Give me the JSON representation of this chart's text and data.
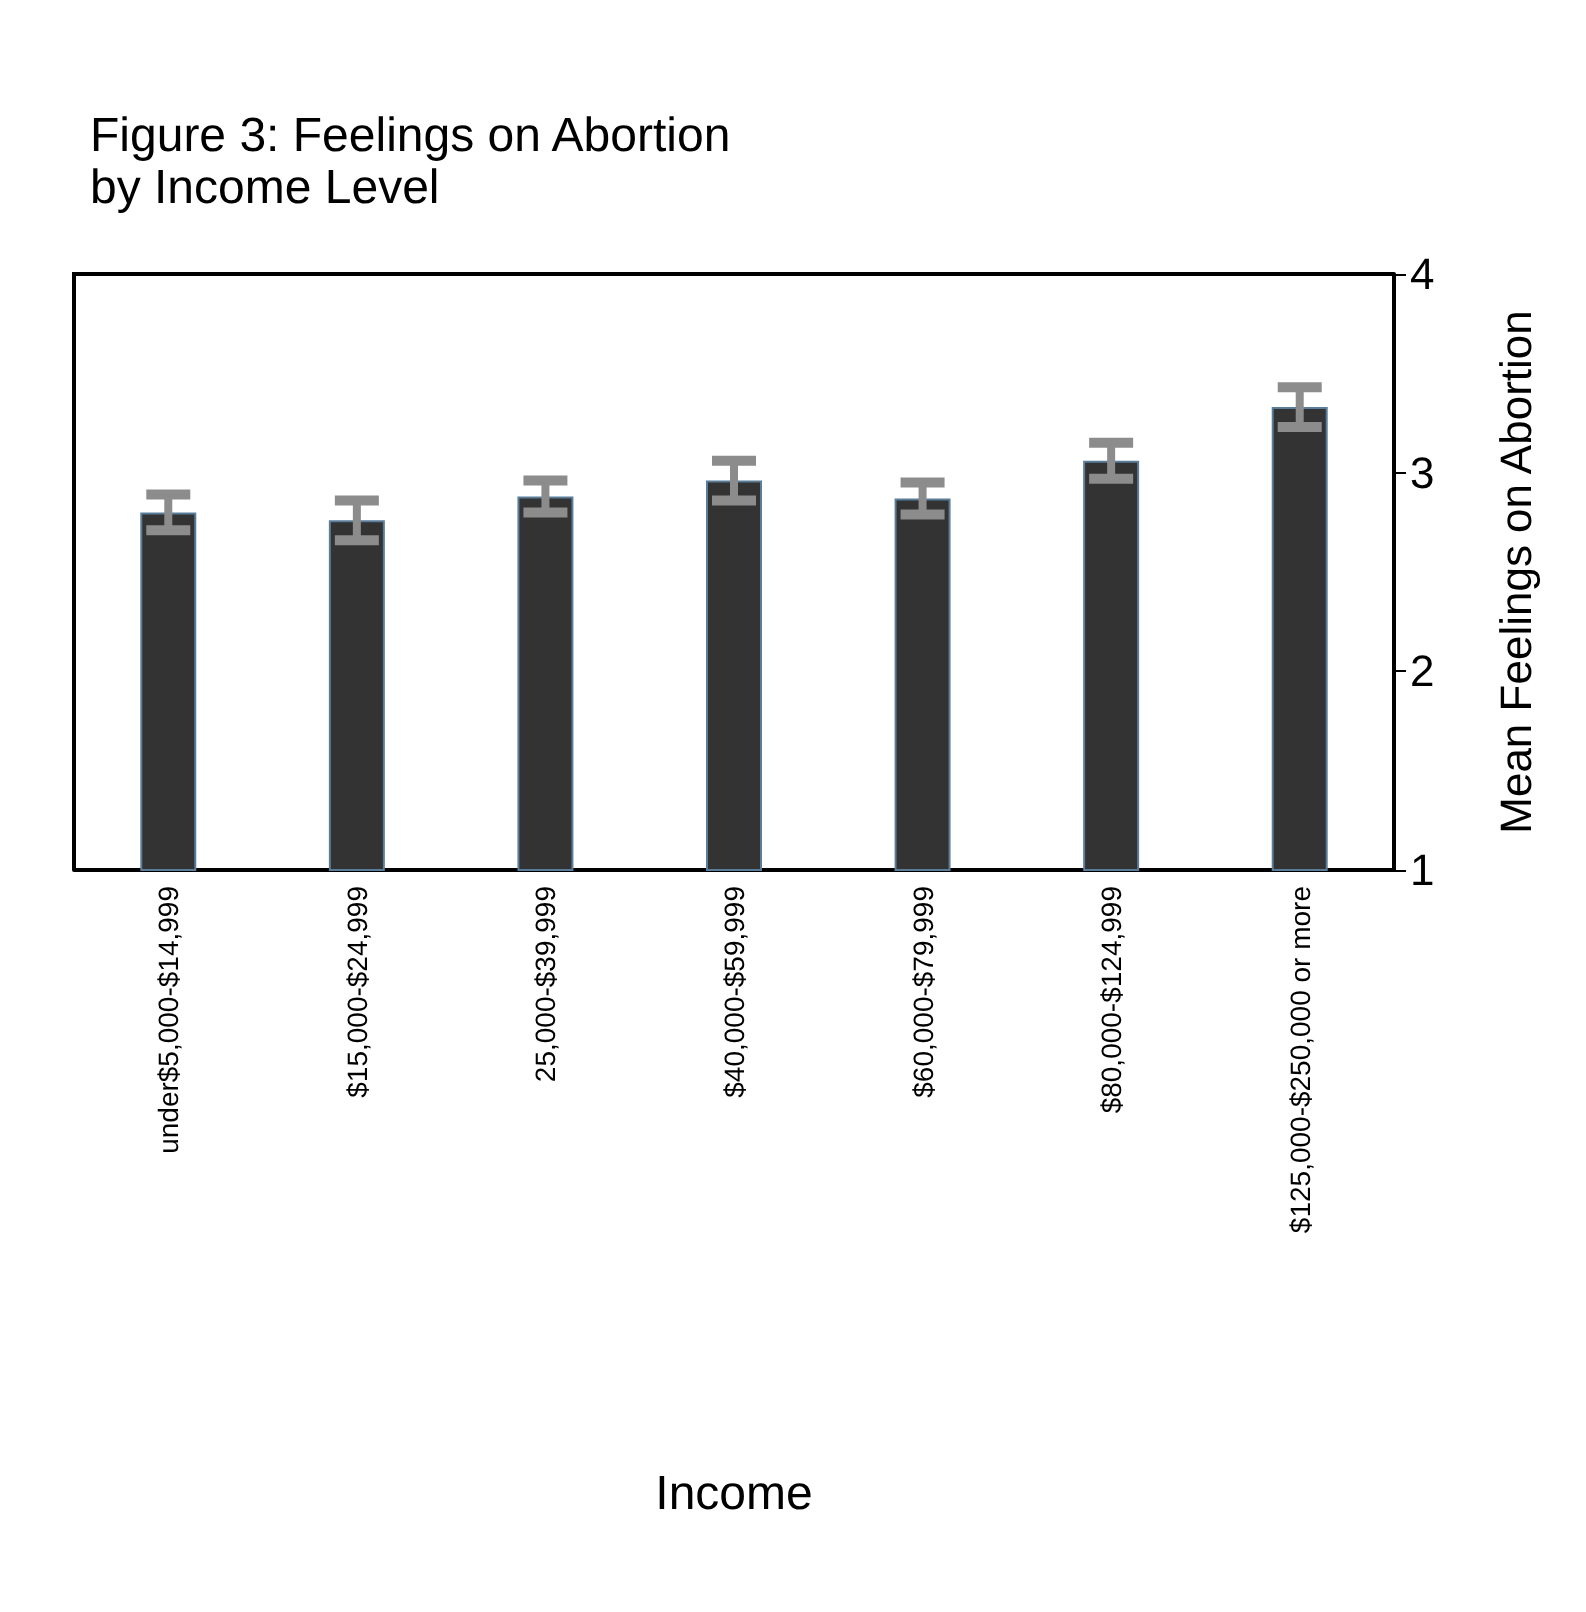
{
  "chart_data": {
    "type": "bar",
    "title": "Figure 3: Feelings on Abortion\nby Income Level",
    "xlabel": "Income",
    "ylabel": "Mean Feelings on Abortion",
    "categories": [
      "under$5,000-$14,999",
      "$15,000-$24,999",
      "25,000-$39,999",
      "$40,000-$59,999",
      "$60,000-$79,999",
      "$80,000-$124,999",
      "$125,000-$250,000 or more"
    ],
    "values": [
      2.8,
      2.76,
      2.88,
      2.96,
      2.87,
      3.06,
      3.33
    ],
    "errors": [
      0.09,
      0.1,
      0.08,
      0.1,
      0.08,
      0.09,
      0.1
    ],
    "color": "#333333",
    "ylim": [
      1,
      4
    ],
    "yticks": [
      1,
      2,
      3,
      4
    ],
    "grid": false
  }
}
